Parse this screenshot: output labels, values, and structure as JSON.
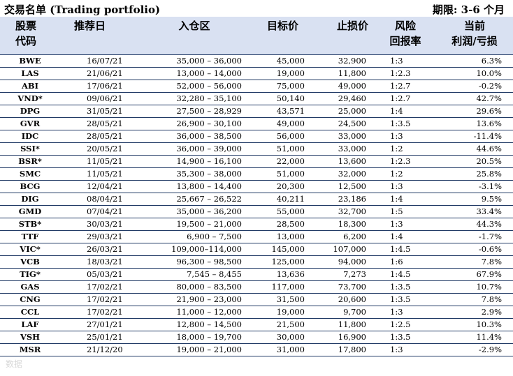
{
  "header": {
    "title": "交易名单 (Trading portfolio)",
    "period": "期限: 3-6 个月"
  },
  "table": {
    "columns": [
      [
        "股票",
        "代码"
      ],
      [
        "推荐日"
      ],
      [
        "入仓区"
      ],
      [
        "目标价"
      ],
      [
        "止损价"
      ],
      [
        "风险",
        "回报率"
      ],
      [
        "当前",
        "利润/亏损"
      ]
    ],
    "rows": [
      [
        "BWE",
        "16/07/21",
        "35,000 – 36,000",
        "45,000",
        "32,900",
        "1:3",
        "6.3%"
      ],
      [
        "LAS",
        "21/06/21",
        "13,000 – 14,000",
        "19,000",
        "11,800",
        "1:2.3",
        "10.0%"
      ],
      [
        "ABI",
        "17/06/21",
        "52,000 – 56,000",
        "75,000",
        "49,000",
        "1:2.7",
        "-0.2%"
      ],
      [
        "VND*",
        "09/06/21",
        "32,280 – 35,100",
        "50,140",
        "29,460",
        "1:2.7",
        "42.7%"
      ],
      [
        "DPG",
        "31/05/21",
        "27,500 – 28,929",
        "43,571",
        "25,000",
        "1:4",
        "29.6%"
      ],
      [
        "GVR",
        "28/05/21",
        "26,900 – 30,100",
        "49,000",
        "24,500",
        "1:3.5",
        "13.6%"
      ],
      [
        "IDC",
        "28/05/21",
        "36,000 – 38,500",
        "56,000",
        "33,000",
        "1:3",
        "-11.4%"
      ],
      [
        "SSI*",
        "20/05/21",
        "36,000 – 39,000",
        "51,000",
        "33,000",
        "1:2",
        "44.6%"
      ],
      [
        "BSR*",
        "11/05/21",
        "14,900 – 16,100",
        "22,000",
        "13,600",
        "1:2.3",
        "20.5%"
      ],
      [
        "SMC",
        "11/05/21",
        "35,300 – 38,000",
        "51,000",
        "32,000",
        "1:2",
        "25.8%"
      ],
      [
        "BCG",
        "12/04/21",
        "13,800 – 14,400",
        "20,300",
        "12,500",
        "1:3",
        "-3.1%"
      ],
      [
        "DIG",
        "08/04/21",
        "25,667 – 26,522",
        "40,211",
        "23,186",
        "1:4",
        "9.5%"
      ],
      [
        "GMD",
        "07/04/21",
        "35,000 – 36,200",
        "55,000",
        "32,700",
        "1:5",
        "33.4%"
      ],
      [
        "STB*",
        "30/03/21",
        "19,500 – 21,000",
        "28,500",
        "18,300",
        "1:3",
        "44.3%"
      ],
      [
        "TTF",
        "29/03/21",
        "6,900 – 7,500",
        "13,000",
        "6,200",
        "1:4",
        "-1.7%"
      ],
      [
        "VIC*",
        "26/03/21",
        "109,000–114,000",
        "145,000",
        "107,000",
        "1:4.5",
        "-0.6%"
      ],
      [
        "VCB",
        "18/03/21",
        "96,300 – 98,500",
        "125,000",
        "94,000",
        "1:6",
        "7.8%"
      ],
      [
        "TIG*",
        "05/03/21",
        "7,545 – 8,455",
        "13,636",
        "7,273",
        "1:4.5",
        "67.9%"
      ],
      [
        "GAS",
        "17/02/21",
        "80,000 – 83,500",
        "117,000",
        "73,700",
        "1:3.5",
        "10.7%"
      ],
      [
        "CNG",
        "17/02/21",
        "21,900 – 23,000",
        "31,500",
        "20,600",
        "1:3.5",
        "7.8%"
      ],
      [
        "CCL",
        "17/02/21",
        "11,000 – 12,000",
        "19,000",
        "9,700",
        "1:3",
        "2.9%"
      ],
      [
        "LAF",
        "27/01/21",
        "12,800 – 14,500",
        "21,500",
        "11,800",
        "1:2.5",
        "10.3%"
      ],
      [
        "VSH",
        "25/01/21",
        "18,000 – 19,700",
        "30,000",
        "16,900",
        "1:3.5",
        "11.4%"
      ],
      [
        "MSR",
        "21/12/20",
        "19,000 – 21,000",
        "31,000",
        "17,800",
        "1:3",
        "-2.9%"
      ]
    ]
  },
  "watermark": "数据"
}
